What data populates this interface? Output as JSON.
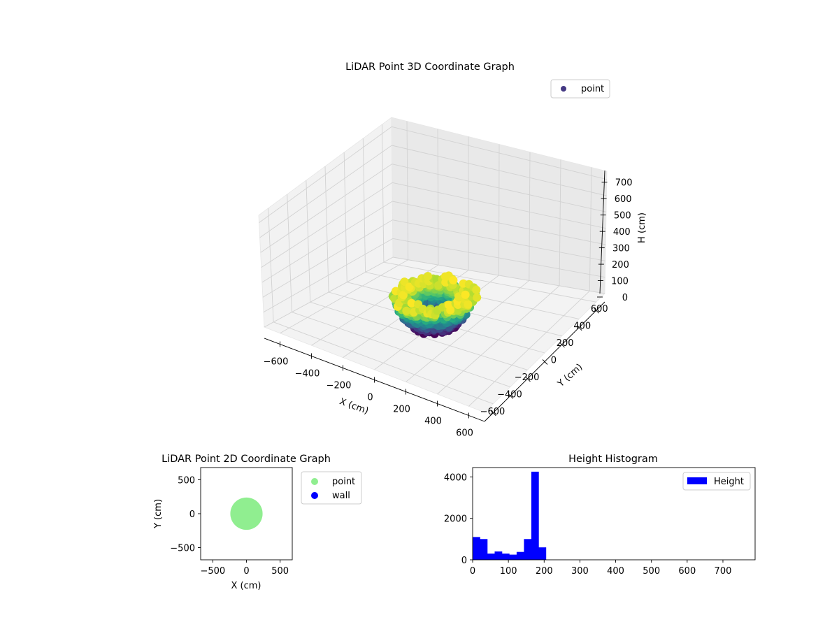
{
  "figure": {
    "background": "#ffffff"
  },
  "chart_data": [
    {
      "type": "scatter",
      "projection": "3d",
      "title": "LiDAR Point 3D Coordinate Graph",
      "xlabel": "X (cm)",
      "ylabel": "Y (cm)",
      "zlabel": "H (cm)",
      "xlim": [
        -700,
        700
      ],
      "ylim": [
        -700,
        700
      ],
      "zlim": [
        750,
        0
      ],
      "z_axis_inverted": true,
      "x_ticks": [
        -600,
        -400,
        -200,
        0,
        200,
        400,
        600
      ],
      "y_ticks": [
        -600,
        -400,
        -200,
        0,
        200,
        400,
        600
      ],
      "z_ticks": [
        0,
        100,
        200,
        300,
        400,
        500,
        600,
        700
      ],
      "grid": true,
      "legend": {
        "placement": "top-right",
        "entries": [
          "point"
        ]
      },
      "series": [
        {
          "name": "point",
          "legend_color": "#443983",
          "colormap": "viridis",
          "shape": "ring",
          "inner_radius": 60,
          "outer_radius": 250,
          "height_range": [
            50,
            210
          ]
        }
      ]
    },
    {
      "type": "scatter",
      "title": "LiDAR Point 2D Coordinate Graph",
      "xlabel": "X (cm)",
      "ylabel": "Y (cm)",
      "xlim": [
        -680,
        680
      ],
      "ylim": [
        -680,
        680
      ],
      "x_ticks": [
        -500,
        0,
        500
      ],
      "y_ticks": [
        -500,
        0,
        500
      ],
      "legend": {
        "placement": "outside-right",
        "entries": [
          "point",
          "wall"
        ]
      },
      "series": [
        {
          "name": "point",
          "color": "#90ee90",
          "shape": "disk",
          "radius": 240
        },
        {
          "name": "wall",
          "color": "#0000ff",
          "count": 0
        }
      ]
    },
    {
      "type": "bar",
      "title": "Height Histogram",
      "xlabel": "",
      "ylabel": "",
      "xlim": [
        0,
        790
      ],
      "ylim": [
        0,
        4450
      ],
      "x_ticks": [
        0,
        100,
        200,
        300,
        400,
        500,
        600,
        700
      ],
      "y_ticks": [
        0,
        2000,
        4000
      ],
      "bin_width": 20.5,
      "bins_start": 0,
      "values": [
        1100,
        1000,
        300,
        400,
        300,
        250,
        380,
        1000,
        4250,
        600
      ],
      "color": "#0000ff",
      "legend": {
        "placement": "top-right",
        "entries": [
          "Height"
        ]
      }
    }
  ]
}
